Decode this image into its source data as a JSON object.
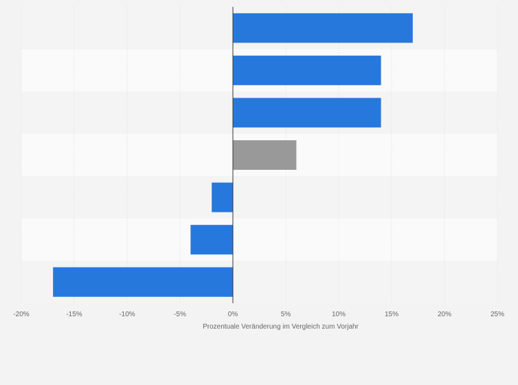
{
  "chart_data": {
    "type": "bar",
    "orientation": "horizontal",
    "title": "",
    "xlabel": "Prozentuale Veränderung im Vergleich zum Vorjahr",
    "ylabel": "",
    "xlim": [
      -20,
      25
    ],
    "xticks": [
      -20,
      -15,
      -10,
      -5,
      0,
      5,
      10,
      15,
      20,
      25
    ],
    "xtick_labels": [
      "-20%",
      "-15%",
      "-10%",
      "-5%",
      "0%",
      "5%",
      "10%",
      "15%",
      "20%",
      "25%"
    ],
    "grid": true,
    "categories": [
      "",
      "",
      "",
      "",
      "",
      "",
      ""
    ],
    "values": [
      17,
      14,
      14,
      6,
      -2,
      -4,
      -17
    ],
    "bar_colors": [
      "#2778dc",
      "#2778dc",
      "#2778dc",
      "#999999",
      "#2778dc",
      "#2778dc",
      "#2778dc"
    ]
  }
}
